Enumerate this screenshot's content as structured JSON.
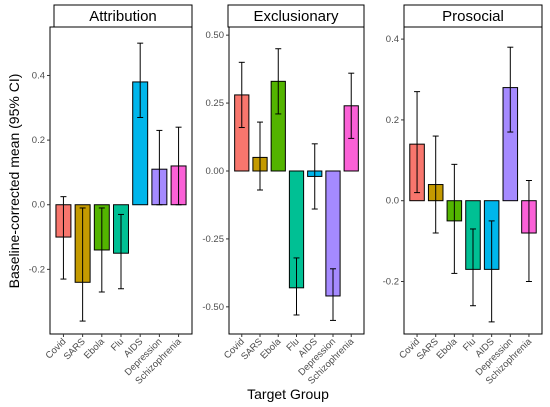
{
  "chart_data": {
    "type": "bar",
    "ylabel": "Baseline-corrected mean (95% CI)",
    "xlabel": "Target Group",
    "categories": [
      "Covid",
      "SARS",
      "Ebola",
      "Flu",
      "AIDS",
      "Depression",
      "Schizophrenia"
    ],
    "colors": [
      "#F8766D",
      "#C49A00",
      "#53B400",
      "#00C094",
      "#00B6EB",
      "#A58AFF",
      "#FB61D7"
    ],
    "grid": false,
    "legend": "none",
    "panels": [
      {
        "title": "Attribution",
        "ylim": [
          -0.4,
          0.55
        ],
        "ticks": [
          -0.2,
          0.0,
          0.2,
          0.4
        ],
        "tick_labels": [
          "-0.2",
          "0.0",
          "0.2",
          "0.4"
        ],
        "values": [
          -0.1,
          -0.24,
          -0.14,
          -0.15,
          0.38,
          0.11,
          0.12
        ],
        "ci_low": [
          -0.23,
          -0.36,
          -0.27,
          -0.26,
          0.27,
          0.0,
          0.0
        ],
        "ci_high": [
          0.025,
          -0.01,
          -0.01,
          -0.03,
          0.5,
          0.23,
          0.24
        ]
      },
      {
        "title": "Exclusionary",
        "ylim": [
          -0.6,
          0.53
        ],
        "ticks": [
          -0.5,
          -0.25,
          0.0,
          0.25,
          0.5
        ],
        "tick_labels": [
          "-0.50",
          "-0.25",
          "0.00",
          "0.25",
          "0.50"
        ],
        "values": [
          0.28,
          0.05,
          0.33,
          -0.43,
          -0.02,
          -0.46,
          0.24
        ],
        "ci_low": [
          0.16,
          -0.07,
          0.21,
          -0.53,
          -0.14,
          -0.55,
          0.12
        ],
        "ci_high": [
          0.4,
          0.18,
          0.45,
          -0.32,
          0.1,
          -0.36,
          0.36
        ]
      },
      {
        "title": "Prosocial",
        "ylim": [
          -0.33,
          0.43
        ],
        "ticks": [
          -0.2,
          0.0,
          0.2,
          0.4
        ],
        "tick_labels": [
          "-0.2",
          "0.0",
          "0.2",
          "0.4"
        ],
        "values": [
          0.14,
          0.04,
          -0.05,
          -0.17,
          -0.17,
          0.28,
          -0.08
        ],
        "ci_low": [
          0.02,
          -0.08,
          -0.18,
          -0.26,
          -0.3,
          0.17,
          -0.2
        ],
        "ci_high": [
          0.27,
          0.16,
          0.09,
          -0.07,
          -0.05,
          0.38,
          0.05
        ]
      }
    ]
  }
}
